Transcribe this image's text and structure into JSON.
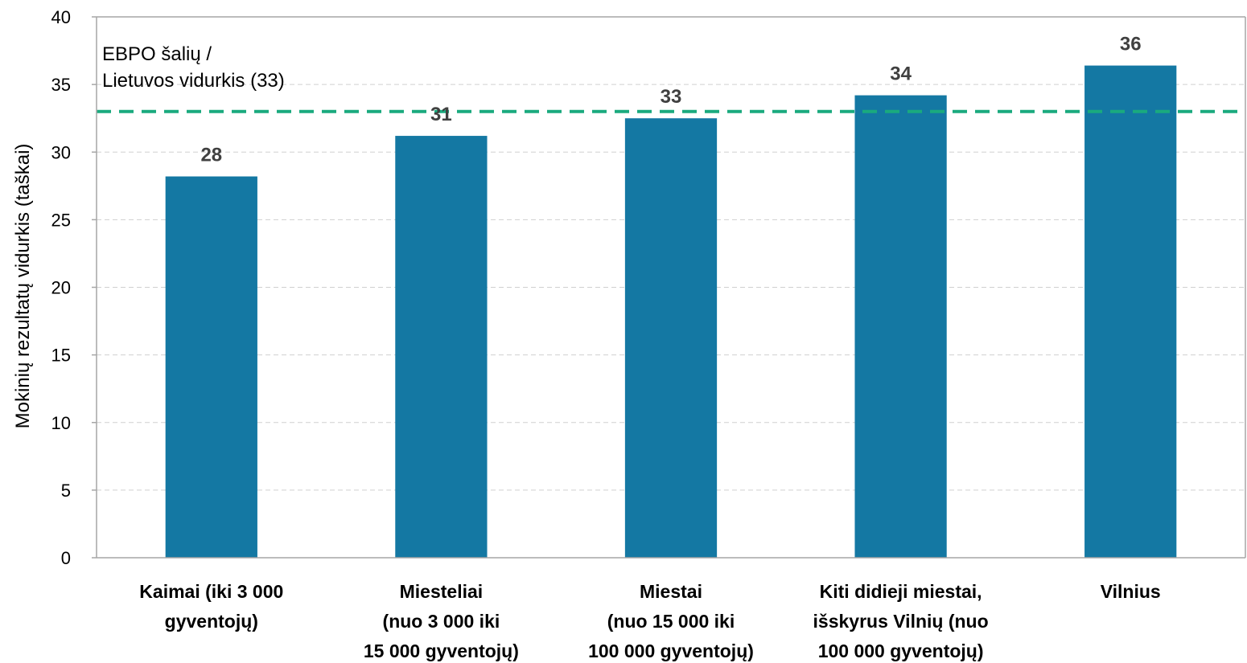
{
  "chart_data": {
    "type": "bar",
    "categories": [
      [
        "Kaimai (iki 3 000",
        "gyventojų)"
      ],
      [
        "Miesteliai",
        "(nuo 3 000 iki",
        "15 000 gyventojų)"
      ],
      [
        "Miestai",
        "(nuo 15 000 iki",
        "100 000 gyventojų)"
      ],
      [
        "Kiti didieji miestai,",
        "išskyrus Vilnių (nuo",
        "100 000 gyventojų)"
      ],
      [
        "Vilnius"
      ]
    ],
    "values": [
      28.2,
      31.2,
      32.5,
      34.2,
      36.4
    ],
    "data_labels": [
      "28",
      "31",
      "33",
      "34",
      "36"
    ],
    "ylabel": "Mokinių rezultatų vidurkis (taškai)",
    "ylim": [
      0,
      40
    ],
    "yticks": [
      0,
      5,
      10,
      15,
      20,
      25,
      30,
      35,
      40
    ],
    "grid": true,
    "reference_line": {
      "value": 33,
      "label": [
        "EBPO šalių /",
        "Lietuvos vidurkis (33)"
      ],
      "color": "#1aaa7e",
      "style": "dashed"
    },
    "bar_color": "#1478a3",
    "grid_color": "#d0d0d0",
    "axis_color": "#a6a6a6"
  }
}
